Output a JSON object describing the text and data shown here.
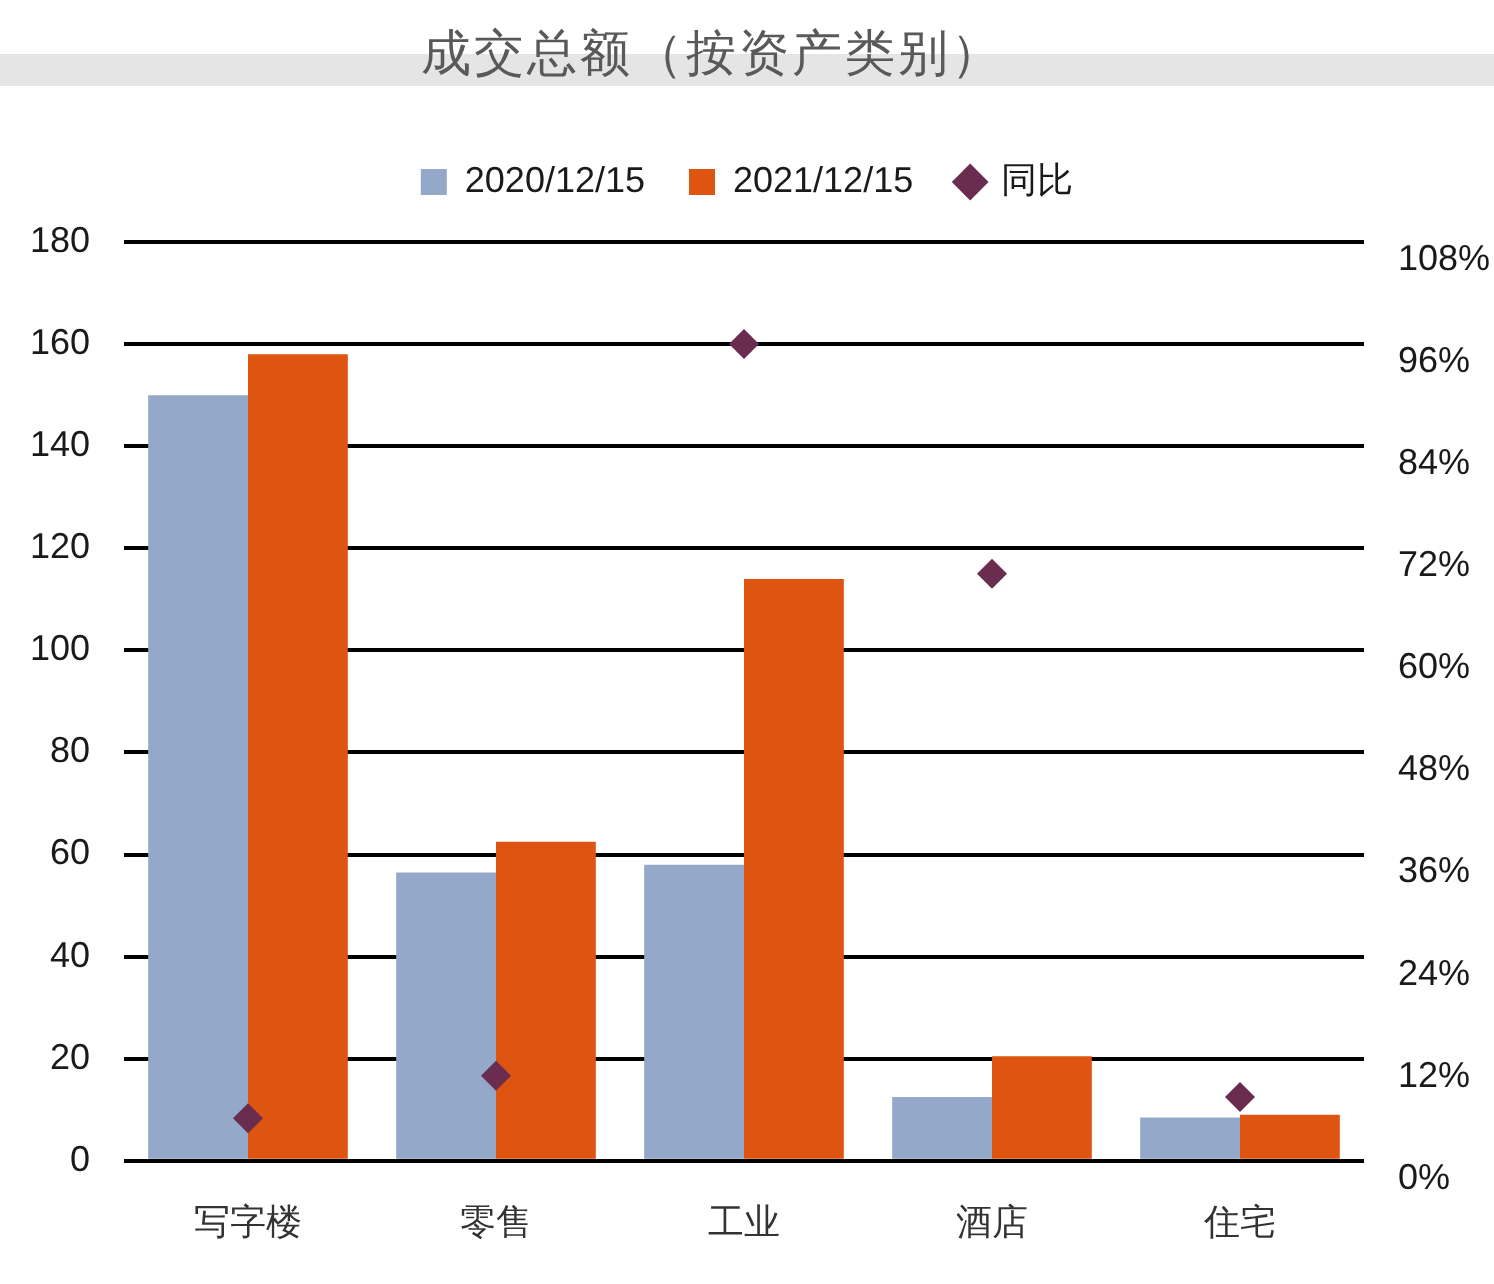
{
  "chart_data": {
    "type": "bar",
    "title": "成交总额（按资产类别）",
    "categories": [
      "写字楼",
      "零售",
      "工业",
      "酒店",
      "住宅"
    ],
    "series": [
      {
        "name": "2020/12/15",
        "color": "#94a8c9",
        "values": [
          150,
          56.5,
          58,
          12.5,
          8.5
        ]
      },
      {
        "name": "2021/12/15",
        "color": "#de5512",
        "values": [
          158,
          62.5,
          114,
          20.5,
          9
        ]
      },
      {
        "name": "同比",
        "type": "scatter",
        "axis": "y2",
        "marker": "diamond",
        "color": "#6a2c4f",
        "values": [
          5,
          10,
          96,
          69,
          7.5
        ]
      }
    ],
    "ylim": [
      0,
      180
    ],
    "yticks": [
      0,
      20,
      40,
      60,
      80,
      100,
      120,
      140,
      160,
      180
    ],
    "y2lim": [
      0,
      108
    ],
    "y2ticks": [
      {
        "value": 0,
        "label": "0%"
      },
      {
        "value": 12,
        "label": "12%"
      },
      {
        "value": 24,
        "label": "24%"
      },
      {
        "value": 36,
        "label": "36%"
      },
      {
        "value": 48,
        "label": "48%"
      },
      {
        "value": 60,
        "label": "60%"
      },
      {
        "value": 72,
        "label": "72%"
      },
      {
        "value": 84,
        "label": "84%"
      },
      {
        "value": 96,
        "label": "96%"
      },
      {
        "value": 108,
        "label": "108%"
      }
    ],
    "grid": "y",
    "legend": "top"
  }
}
